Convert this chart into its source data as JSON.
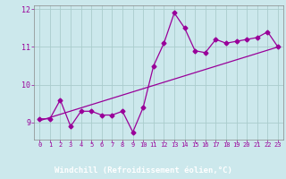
{
  "x_data": [
    0,
    1,
    2,
    3,
    4,
    5,
    6,
    7,
    8,
    9,
    10,
    11,
    12,
    13,
    14,
    15,
    16,
    17,
    18,
    19,
    20,
    21,
    22,
    23
  ],
  "y_data": [
    9.1,
    9.1,
    9.6,
    8.9,
    9.3,
    9.3,
    9.2,
    9.2,
    9.3,
    8.75,
    9.4,
    10.5,
    11.1,
    11.9,
    11.5,
    10.9,
    10.85,
    11.2,
    11.1,
    11.15,
    11.2,
    11.25,
    11.4,
    11.0
  ],
  "trend_x": [
    0,
    23
  ],
  "trend_y": [
    9.05,
    11.0
  ],
  "color": "#990099",
  "bg_color": "#cce8ec",
  "grid_color": "#aacccc",
  "xlabel": "Windchill (Refroidissement éolien,°C)",
  "xlabel_bg": "#660066",
  "xlabel_fg": "#ffffff",
  "xlim": [
    -0.5,
    23.5
  ],
  "ylim": [
    8.55,
    12.1
  ],
  "yticks": [
    9,
    10,
    11,
    12
  ],
  "xticks": [
    0,
    1,
    2,
    3,
    4,
    5,
    6,
    7,
    8,
    9,
    10,
    11,
    12,
    13,
    14,
    15,
    16,
    17,
    18,
    19,
    20,
    21,
    22,
    23
  ],
  "marker": "D",
  "markersize": 2.5,
  "linewidth": 0.9
}
